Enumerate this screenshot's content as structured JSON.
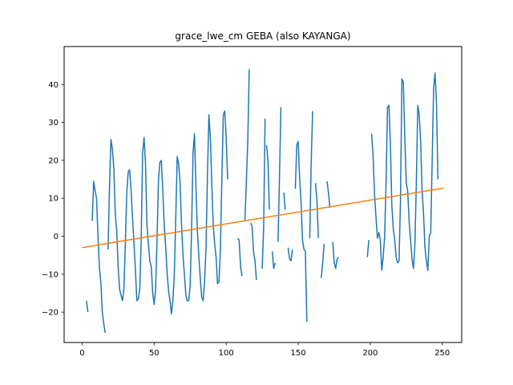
{
  "chart_data": {
    "type": "line",
    "title": "grace_lwe_cm GEBA (also KAYANGA)",
    "xlabel": "",
    "ylabel": "",
    "xlim": [
      -12.5,
      263.5
    ],
    "ylim": [
      -28,
      50
    ],
    "x_ticks": [
      "0",
      "50",
      "100",
      "150",
      "200",
      "250"
    ],
    "y_ticks": [
      "-20",
      "-10",
      "0",
      "10",
      "20",
      "30",
      "40"
    ],
    "grid": false,
    "legend": "none",
    "colors": {
      "series": "#1f77b4",
      "trend": "#ff7f0e",
      "axis": "#000000"
    },
    "series": [
      {
        "role": "data",
        "segments": [
          [
            [
              3,
              -17
            ],
            [
              4,
              -20
            ]
          ],
          [
            [
              7,
              4
            ],
            [
              8,
              14.5
            ],
            [
              9,
              12
            ],
            [
              10,
              10
            ],
            [
              11,
              0
            ],
            [
              12,
              -8.5
            ],
            [
              13,
              -12
            ],
            [
              14,
              -20
            ],
            [
              15,
              -23
            ],
            [
              16,
              -25.5
            ]
          ],
          [
            [
              18,
              -3.5
            ],
            [
              19,
              13
            ],
            [
              20,
              25.5
            ],
            [
              21,
              23
            ],
            [
              22,
              18
            ],
            [
              23,
              6
            ],
            [
              24,
              1.5
            ],
            [
              25,
              -8
            ],
            [
              26,
              -14
            ],
            [
              27,
              -15.5
            ],
            [
              28,
              -17
            ],
            [
              29,
              -14
            ],
            [
              30,
              -2
            ],
            [
              31,
              11.5
            ],
            [
              32,
              17
            ],
            [
              33,
              17.5
            ],
            [
              34,
              12
            ],
            [
              35,
              5
            ],
            [
              36,
              -2
            ],
            [
              37,
              -9
            ],
            [
              38,
              -17
            ],
            [
              39,
              -16.5
            ],
            [
              40,
              -14
            ],
            [
              41,
              -1
            ],
            [
              42,
              22
            ],
            [
              43,
              26
            ],
            [
              44,
              19
            ],
            [
              45,
              3
            ],
            [
              46,
              -2
            ],
            [
              47,
              -6.5
            ],
            [
              48,
              -8
            ],
            [
              49,
              -15
            ],
            [
              50,
              -18
            ],
            [
              51,
              -14
            ],
            [
              52,
              -1
            ],
            [
              53,
              15
            ],
            [
              54,
              19.5
            ],
            [
              55,
              20
            ],
            [
              56,
              12
            ],
            [
              57,
              3
            ],
            [
              58,
              -3
            ],
            [
              59,
              -9.5
            ],
            [
              60,
              -14.5
            ],
            [
              61,
              -17
            ],
            [
              62,
              -20.5
            ],
            [
              63,
              -17
            ],
            [
              64,
              -10
            ],
            [
              65,
              5
            ],
            [
              66,
              21
            ],
            [
              67,
              19
            ],
            [
              68,
              14
            ],
            [
              69,
              3
            ],
            [
              70,
              -5
            ],
            [
              71,
              -10
            ],
            [
              72,
              -15.5
            ],
            [
              73,
              -17
            ],
            [
              74,
              -17
            ],
            [
              75,
              -13
            ],
            [
              76,
              2
            ],
            [
              77,
              22
            ],
            [
              78,
              27
            ],
            [
              79,
              13
            ],
            [
              80,
              1.5
            ],
            [
              81,
              -5
            ],
            [
              82,
              -11
            ],
            [
              83,
              -16
            ],
            [
              84,
              -17
            ],
            [
              85,
              -12
            ],
            [
              86,
              -3
            ],
            [
              87,
              16
            ],
            [
              88,
              32
            ],
            [
              89,
              26
            ],
            [
              90,
              14
            ],
            [
              91,
              3
            ],
            [
              92,
              -2
            ],
            [
              93,
              -5.5
            ],
            [
              94,
              -12.5
            ],
            [
              95,
              -12
            ],
            [
              96,
              -3
            ],
            [
              97,
              15
            ],
            [
              98,
              32
            ],
            [
              99,
              33
            ],
            [
              100,
              26
            ],
            [
              101,
              15
            ]
          ],
          [
            [
              108,
              -0.5
            ],
            [
              109,
              -1
            ],
            [
              110,
              -8
            ],
            [
              111,
              -10.5
            ]
          ],
          [
            [
              113,
              4
            ],
            [
              114,
              14.5
            ],
            [
              115,
              25
            ],
            [
              116,
              44
            ]
          ],
          [
            [
              117,
              3.5
            ],
            [
              118,
              2.5
            ],
            [
              119,
              -4
            ],
            [
              120,
              -6.5
            ],
            [
              121,
              -11.5
            ]
          ],
          [
            [
              125,
              -8.5
            ],
            [
              126,
              2
            ],
            [
              127,
              31
            ]
          ],
          [
            [
              128,
              24
            ],
            [
              129,
              20
            ],
            [
              130,
              7
            ]
          ],
          [
            [
              132,
              -4
            ],
            [
              133,
              -8.5
            ],
            [
              134,
              -7
            ]
          ],
          [
            [
              136,
              -1.5
            ],
            [
              137,
              15.5
            ],
            [
              138,
              34
            ]
          ],
          [
            [
              140,
              11.5
            ],
            [
              141,
              7
            ]
          ],
          [
            [
              143,
              -3
            ],
            [
              144,
              -6
            ],
            [
              145,
              -6.5
            ],
            [
              146,
              -3.5
            ]
          ],
          [
            [
              148,
              12.5
            ],
            [
              149,
              24
            ],
            [
              150,
              25
            ],
            [
              151,
              15
            ],
            [
              152,
              9
            ],
            [
              153,
              -1
            ],
            [
              154,
              -3.5
            ],
            [
              155,
              -4
            ],
            [
              156,
              -22.5
            ]
          ],
          [
            [
              158,
              -0.5
            ],
            [
              159,
              19
            ],
            [
              160,
              33
            ]
          ],
          [
            [
              162,
              14
            ],
            [
              163,
              9.5
            ],
            [
              164,
              -0.5
            ]
          ],
          [
            [
              166,
              -11
            ],
            [
              167,
              -7
            ],
            [
              168,
              -2
            ]
          ],
          [
            [
              170,
              14.5
            ],
            [
              171,
              11.5
            ],
            [
              172,
              7.5
            ]
          ],
          [
            [
              174,
              -1.5
            ],
            [
              175,
              -7
            ],
            [
              176,
              -8.5
            ],
            [
              177,
              -6
            ],
            [
              178,
              -5.5
            ]
          ],
          [
            [
              198,
              -5.5
            ],
            [
              199,
              -1
            ]
          ],
          [
            [
              201,
              27
            ],
            [
              202,
              21
            ],
            [
              203,
              11
            ],
            [
              204,
              5
            ],
            [
              205,
              -0.5
            ],
            [
              206,
              1
            ],
            [
              207,
              -1
            ],
            [
              208,
              -9
            ],
            [
              209,
              -5.5
            ],
            [
              210,
              0
            ],
            [
              211,
              14
            ],
            [
              212,
              34
            ],
            [
              213,
              34.5
            ],
            [
              214,
              24
            ],
            [
              215,
              8
            ],
            [
              216,
              2
            ],
            [
              217,
              -1
            ],
            [
              218,
              -5.5
            ],
            [
              219,
              -7
            ],
            [
              220,
              -6.5
            ],
            [
              221,
              9.5
            ],
            [
              222,
              41.5
            ],
            [
              223,
              40.5
            ],
            [
              224,
              26
            ],
            [
              225,
              14
            ],
            [
              226,
              12
            ],
            [
              227,
              4
            ],
            [
              228,
              -1
            ],
            [
              229,
              -6
            ],
            [
              230,
              -8.5
            ],
            [
              231,
              -2.5
            ],
            [
              232,
              14
            ],
            [
              233,
              34.5
            ],
            [
              234,
              32
            ],
            [
              235,
              25
            ],
            [
              236,
              12
            ],
            [
              237,
              6
            ],
            [
              238,
              -3
            ],
            [
              239,
              -6.5
            ],
            [
              240,
              -9
            ],
            [
              241,
              0
            ],
            [
              242,
              1
            ],
            [
              243,
              20
            ],
            [
              244,
              39
            ],
            [
              245,
              43
            ],
            [
              246,
              35
            ],
            [
              247,
              15
            ]
          ]
        ]
      },
      {
        "role": "trend",
        "segments": [
          [
            [
              0,
              -3.0
            ],
            [
              251,
              12.7
            ]
          ]
        ]
      }
    ]
  }
}
